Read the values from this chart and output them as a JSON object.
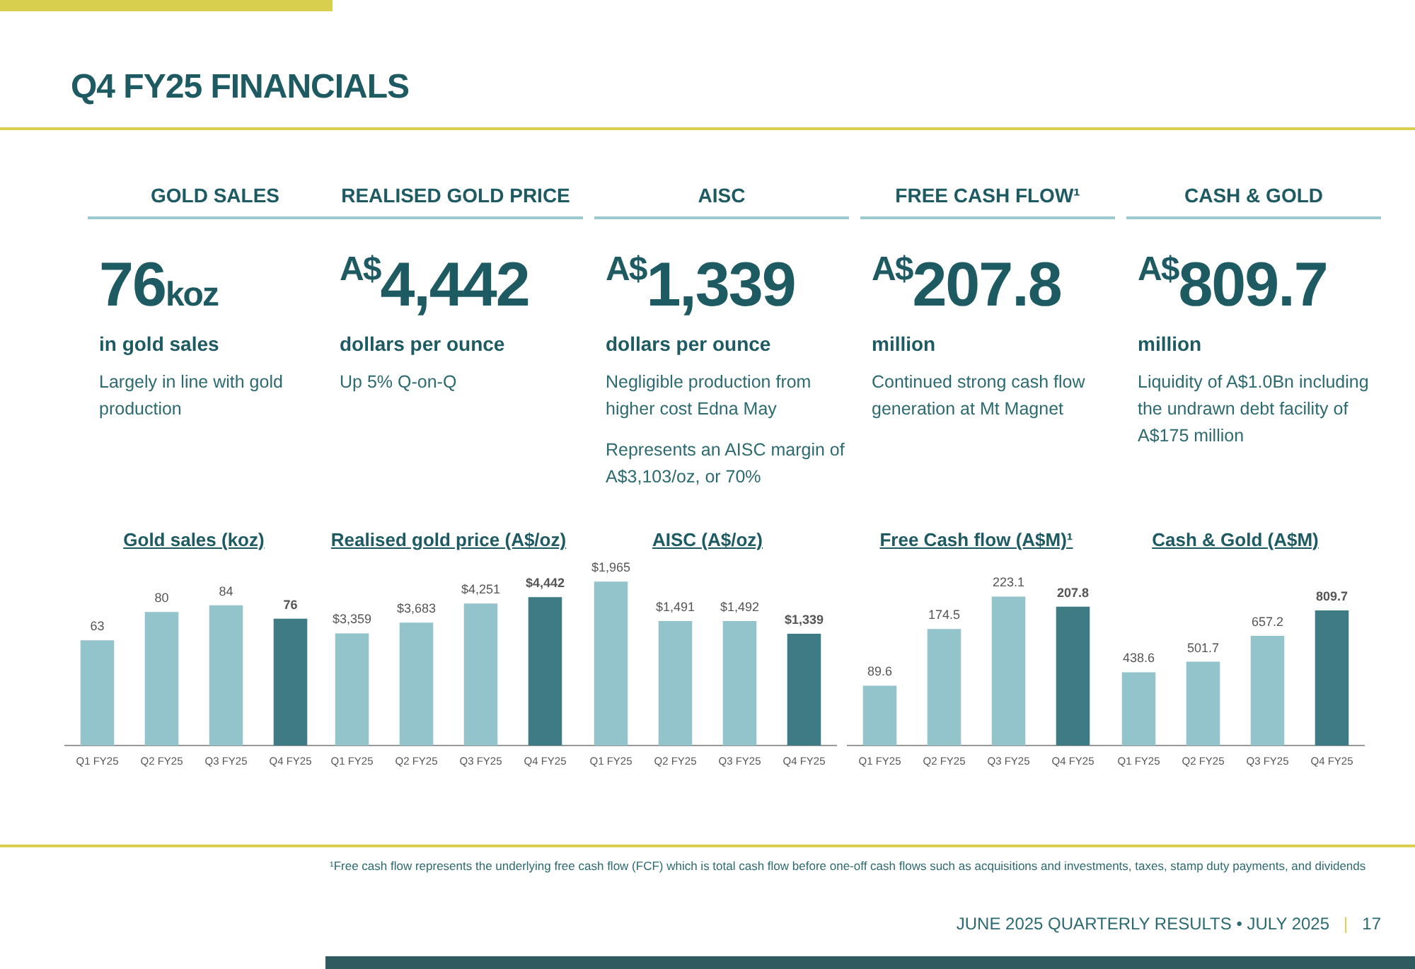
{
  "chart_data": [
    {
      "type": "other",
      "title": "Q4 FY25 FINANCIALS"
    },
    {
      "type": "other",
      "title": "GOLD SALES",
      "annotations": [
        "76koz",
        "in gold sales",
        "Largely in line with gold production"
      ]
    },
    {
      "type": "other",
      "title": "REALISED GOLD PRICE",
      "annotations": [
        "$^{A$}$4,442",
        "dollars per ounce",
        "Up 5% Q-on-Q"
      ]
    },
    {
      "type": "other",
      "title": "AISC",
      "annotations": [
        "$^{A$}$1,339",
        "dollars per ounce",
        "Negligible production from higher cost Edna May",
        "Represents an AISC margin of A$3,103/oz, or 70%"
      ]
    },
    {
      "type": "other",
      "title": "FREE CASH FLOW¹",
      "annotations": [
        "$^{A$}$207.8",
        "million",
        "Continued strong cash flow generation at Mt Magnet"
      ]
    },
    {
      "type": "other",
      "title": "CASH & GOLD",
      "annotations": [
        "$^{A$}$809.7",
        "million",
        "Liquidity of A$1.0Bn including the undrawn debt facility of A$175 million"
      ]
    },
    {
      "type": "bar",
      "title": "Gold sales (koz)",
      "categories": [
        "Q1 FY25",
        "Q2 FY25",
        "Q3 FY25",
        "Q4 FY25"
      ],
      "values": [
        63,
        80,
        84,
        76
      ],
      "colors": [
        "#93c4cc",
        "#93c4cc",
        "#93c4cc",
        "#3f7b84"
      ],
      "data_labels": true,
      "tick_labels": "x",
      "grid": false,
      "legend": false
    },
    {
      "type": "bar",
      "title": "Realised gold price (A$/oz)",
      "categories": [
        "Q1 FY25",
        "Q2 FY25",
        "Q3 FY25",
        "Q4 FY25"
      ],
      "values": [
        3359,
        3683,
        4251,
        4442
      ],
      "value_labels": [
        "$3,359",
        "$3,683",
        "$4,251",
        "$4,442"
      ],
      "colors": [
        "#93c4cc",
        "#93c4cc",
        "#93c4cc",
        "#3f7b84"
      ],
      "tick_labels": "x",
      "grid": false,
      "legend": false
    },
    {
      "type": "bar",
      "title": "AISC (A$/oz)",
      "categories": [
        "Q1 FY25",
        "Q2 FY25",
        "Q3 FY25",
        "Q4 FY25"
      ],
      "values": [
        1965,
        1491,
        1492,
        1339
      ],
      "value_labels": [
        "$1,965",
        "$1,491",
        "$1,492",
        "$1,339"
      ],
      "colors": [
        "#93c4cc",
        "#93c4cc",
        "#93c4cc",
        "#3f7b84"
      ],
      "tick_labels": "x",
      "grid": false,
      "legend": false
    },
    {
      "type": "bar",
      "title": "Free Cash flow (A$M)¹",
      "categories": [
        "Q1 FY25",
        "Q2 FY25",
        "Q3 FY25",
        "Q4 FY25"
      ],
      "values": [
        89.6,
        174.5,
        223.1,
        207.8
      ],
      "colors": [
        "#93c4cc",
        "#93c4cc",
        "#93c4cc",
        "#3f7b84"
      ],
      "data_labels": true,
      "tick_labels": "x",
      "grid": false,
      "legend": false
    },
    {
      "type": "bar",
      "title": "Cash & Gold (A$M)",
      "categories": [
        "Q1 FY25",
        "Q2 FY25",
        "Q3 FY25",
        "Q4 FY25"
      ],
      "values": [
        438.6,
        501.7,
        657.2,
        809.7
      ],
      "colors": [
        "#93c4cc",
        "#93c4cc",
        "#93c4cc",
        "#3f7b84"
      ],
      "data_labels": true,
      "tick_labels": "x",
      "grid": false,
      "legend": false
    },
    {
      "type": "other",
      "annotations": [
        "¹Free cash flow represents the underlying free cash flow (FCF) which is total cash flow before one-off cash flows such as acquisitions and investments, taxes, stamp duty payments, and dividends",
        "JUNE 2025 QUARTERLY RESULTS • JULY 2025",
        "|",
        "17"
      ]
    }
  ]
}
